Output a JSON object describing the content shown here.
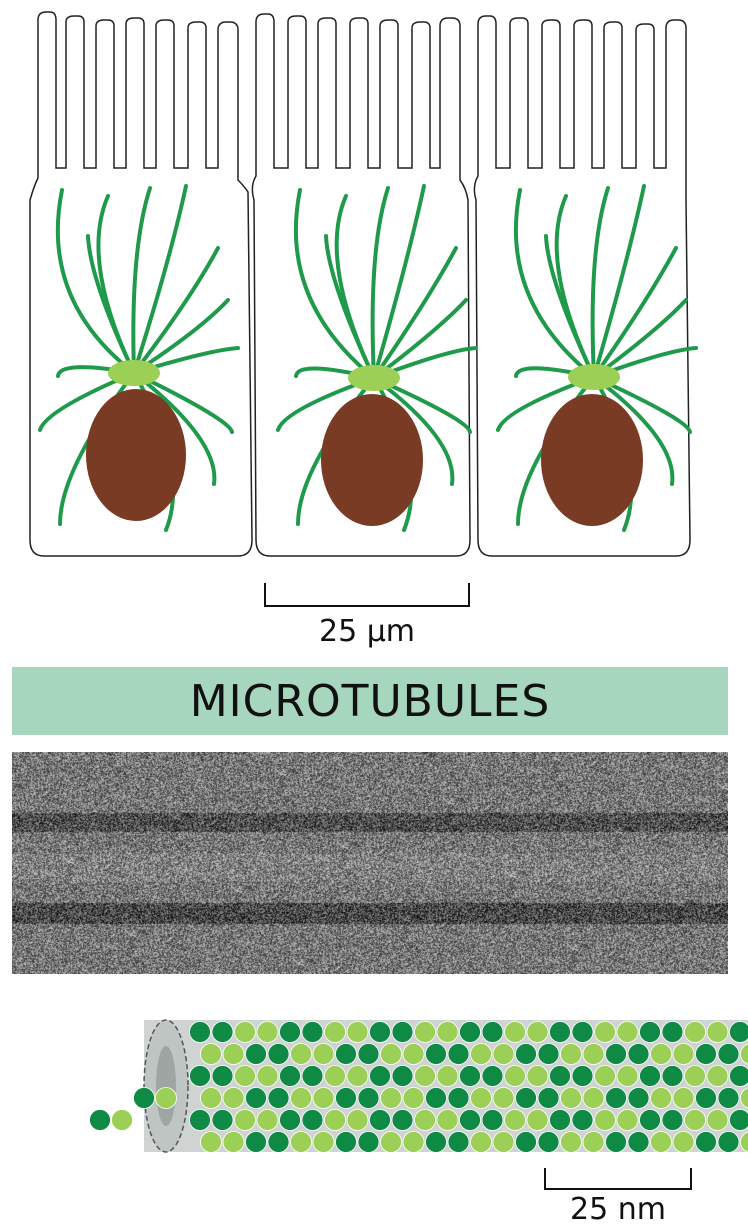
{
  "cells_diagram": {
    "cell_count": 3,
    "microtubule_color": "#1f9a4a",
    "centrosome_color": "#9ccf55",
    "nucleus_color": "#7a3b24"
  },
  "scale_bar_cells": {
    "label": "25 μm"
  },
  "banner": {
    "title": "MICROTUBULES",
    "background": "#a7d6bf"
  },
  "micrograph": {
    "icon": "electron-micrograph-image"
  },
  "tubule_model": {
    "dark_subunit_color": "#0e8a45",
    "light_subunit_color": "#9ccf55",
    "core_color": "#cfd4d2"
  },
  "scale_bar_tubule": {
    "label": "25 nm"
  }
}
